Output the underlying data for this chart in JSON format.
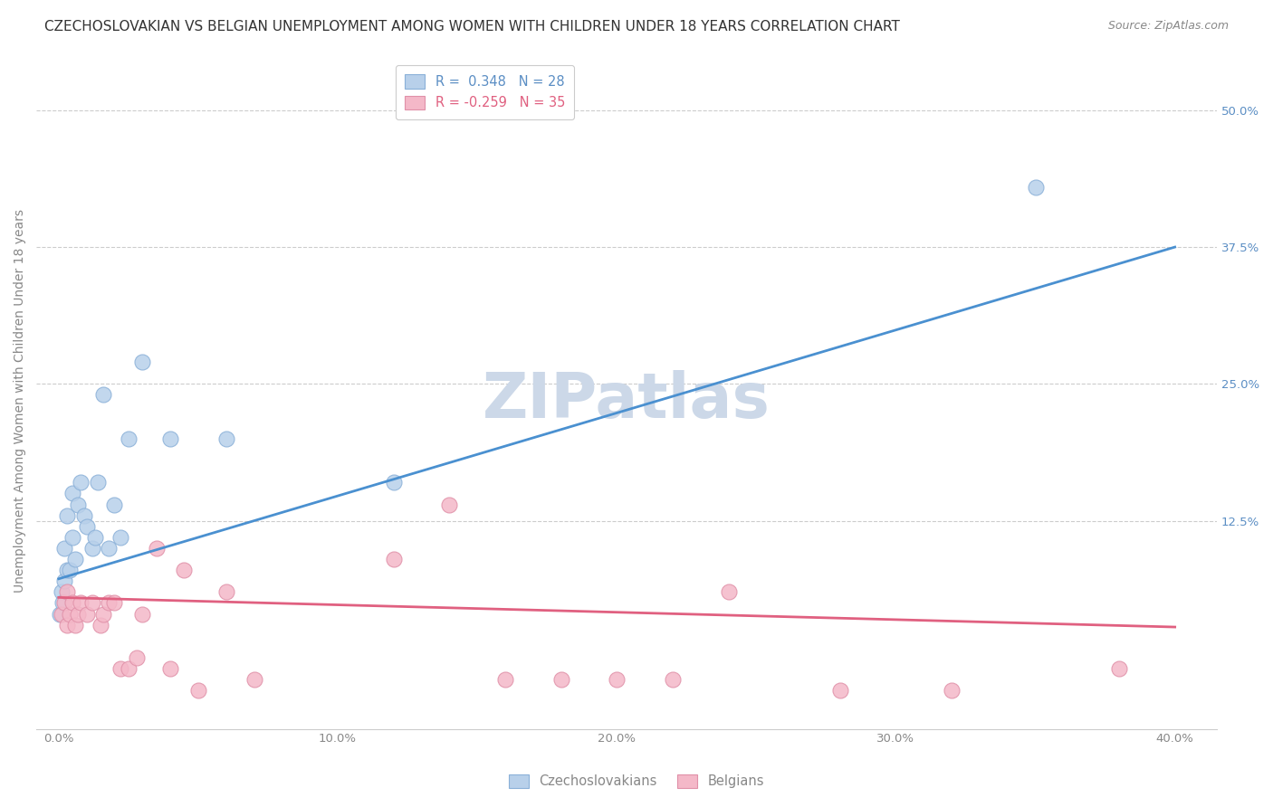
{
  "title": "CZECHOSLOVAKIAN VS BELGIAN UNEMPLOYMENT AMONG WOMEN WITH CHILDREN UNDER 18 YEARS CORRELATION CHART",
  "source": "Source: ZipAtlas.com",
  "ylabel": "Unemployment Among Women with Children Under 18 years",
  "xlabel_ticks": [
    "0.0%",
    "10.0%",
    "20.0%",
    "30.0%",
    "40.0%"
  ],
  "xlabel_vals": [
    0.0,
    0.1,
    0.2,
    0.3,
    0.4
  ],
  "ylabel_ticks_right": [
    "12.5%",
    "25.0%",
    "37.5%",
    "50.0%"
  ],
  "ylabel_vals_right": [
    0.125,
    0.25,
    0.375,
    0.5
  ],
  "xlim": [
    -0.008,
    0.415
  ],
  "ylim": [
    -0.065,
    0.535
  ],
  "watermark": "ZIPatlas",
  "legend_entries": [
    {
      "label_r": "R = ",
      "label_val": " 0.348",
      "label_n": "   N = ",
      "label_nval": "28",
      "color": "#b8d0ea",
      "text_color": "#5b8ec4"
    },
    {
      "label_r": "R = ",
      "label_val": "-0.259",
      "label_n": "   N = ",
      "label_nval": "35",
      "color": "#f4b8c8",
      "text_color": "#e06080"
    }
  ],
  "czechoslovakian_scatter": {
    "color": "#b8d0ea",
    "edgecolor": "#8ab0d8",
    "x": [
      0.0005,
      0.001,
      0.0015,
      0.002,
      0.002,
      0.003,
      0.003,
      0.004,
      0.005,
      0.005,
      0.006,
      0.007,
      0.008,
      0.009,
      0.01,
      0.012,
      0.013,
      0.014,
      0.016,
      0.018,
      0.02,
      0.022,
      0.025,
      0.03,
      0.04,
      0.06,
      0.12,
      0.35
    ],
    "y": [
      0.04,
      0.06,
      0.05,
      0.07,
      0.1,
      0.13,
      0.08,
      0.08,
      0.11,
      0.15,
      0.09,
      0.14,
      0.16,
      0.13,
      0.12,
      0.1,
      0.11,
      0.16,
      0.24,
      0.1,
      0.14,
      0.11,
      0.2,
      0.27,
      0.2,
      0.2,
      0.16,
      0.43
    ]
  },
  "belgian_scatter": {
    "color": "#f4b8c8",
    "edgecolor": "#e090a8",
    "x": [
      0.001,
      0.002,
      0.003,
      0.003,
      0.004,
      0.005,
      0.006,
      0.007,
      0.008,
      0.01,
      0.012,
      0.015,
      0.016,
      0.018,
      0.02,
      0.022,
      0.025,
      0.028,
      0.03,
      0.035,
      0.04,
      0.045,
      0.05,
      0.06,
      0.07,
      0.12,
      0.14,
      0.16,
      0.18,
      0.2,
      0.22,
      0.24,
      0.28,
      0.32,
      0.38
    ],
    "y": [
      0.04,
      0.05,
      0.03,
      0.06,
      0.04,
      0.05,
      0.03,
      0.04,
      0.05,
      0.04,
      0.05,
      0.03,
      0.04,
      0.05,
      0.05,
      -0.01,
      -0.01,
      0.0,
      0.04,
      0.1,
      -0.01,
      0.08,
      -0.03,
      0.06,
      -0.02,
      0.09,
      0.14,
      -0.02,
      -0.02,
      -0.02,
      -0.02,
      0.06,
      -0.03,
      -0.03,
      -0.01
    ]
  },
  "blue_line": {
    "x": [
      0.0,
      0.4
    ],
    "y": [
      0.072,
      0.375
    ],
    "color": "#4a90d0",
    "linewidth": 2.0
  },
  "pink_line": {
    "x": [
      0.0,
      0.4
    ],
    "y": [
      0.055,
      0.028
    ],
    "color": "#e06080",
    "linewidth": 2.0
  },
  "grid_color": "#cccccc",
  "background_color": "#ffffff",
  "title_fontsize": 11,
  "source_fontsize": 9,
  "axis_label_fontsize": 10,
  "tick_fontsize": 9.5,
  "scatter_size": 150,
  "watermark_color": "#ccd8e8",
  "watermark_fontsize": 50
}
